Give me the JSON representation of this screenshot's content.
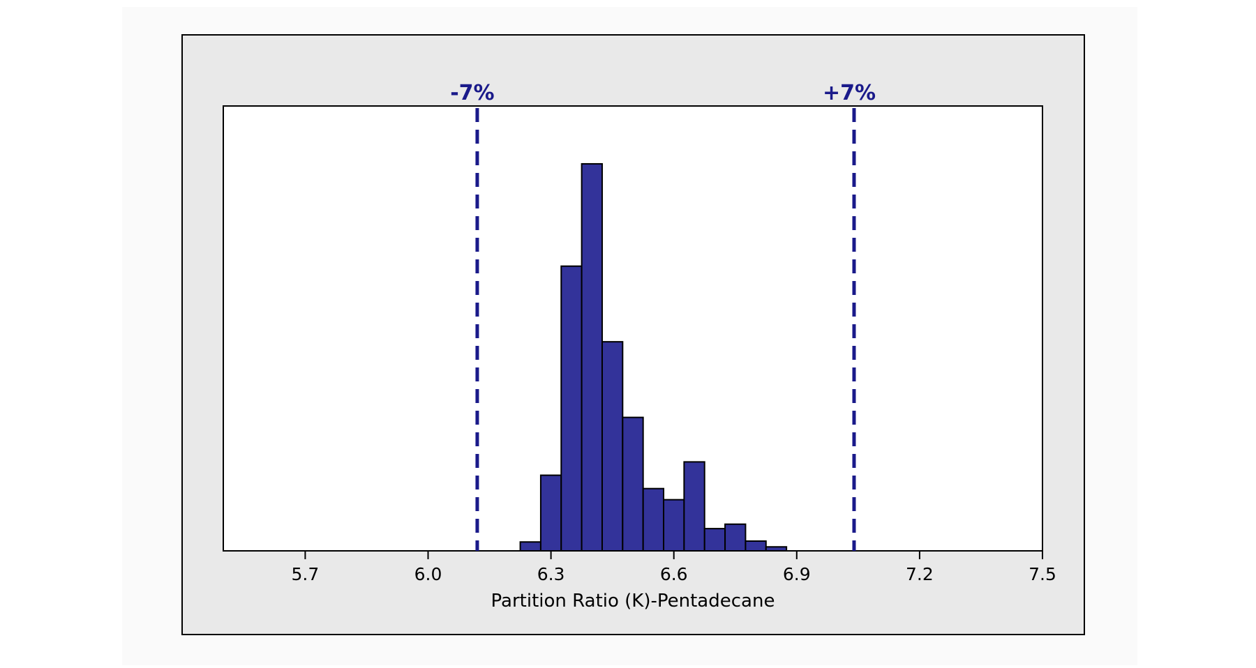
{
  "chart_data": {
    "type": "bar",
    "title": "",
    "xlabel": "Partition Ratio (K)-Pentadecane",
    "ylabel": "",
    "xlim": [
      5.5,
      7.5
    ],
    "ylim": [
      0,
      100
    ],
    "x_ticks": [
      "5.7",
      "6.0",
      "6.3",
      "6.6",
      "6.9",
      "7.2",
      "7.5"
    ],
    "x_tick_values": [
      5.7,
      6.0,
      6.3,
      6.6,
      6.9,
      7.2,
      7.5
    ],
    "bin_width": 0.05,
    "bin_centers": [
      6.25,
      6.3,
      6.35,
      6.4,
      6.45,
      6.5,
      6.55,
      6.6,
      6.65,
      6.7,
      6.75,
      6.8,
      6.85
    ],
    "values": [
      2,
      17,
      64,
      87,
      47,
      30,
      14,
      11.5,
      20,
      5,
      6,
      2.2,
      0.9
    ],
    "y_axis_shown": false,
    "grid": false,
    "bar_color": "#33339a",
    "bar_edge_color": "#000000",
    "reference_lines": [
      {
        "label": "-7%",
        "x": 6.12,
        "color": "#1a1a8a",
        "style": "dashed"
      },
      {
        "label": "+7%",
        "x": 7.04,
        "color": "#1a1a8a",
        "style": "dashed"
      }
    ],
    "colors": {
      "frame_background": "#e9e9e9",
      "plot_background": "#ffffff",
      "axis": "#000000",
      "reference_text": "#1a1a8a"
    }
  }
}
